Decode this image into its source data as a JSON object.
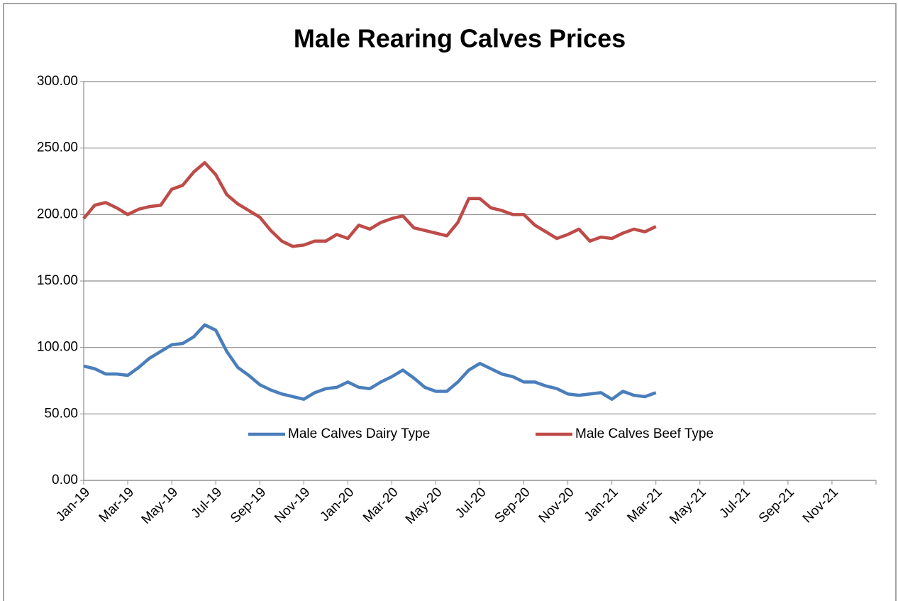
{
  "chart_data": {
    "type": "line",
    "title": "Male Rearing Calves Prices",
    "x": [
      0,
      0.5,
      1,
      1.5,
      2,
      2.5,
      3,
      3.5,
      4,
      4.5,
      5,
      5.5,
      6,
      6.5,
      7,
      7.5,
      8,
      8.5,
      9,
      9.5,
      10,
      10.5,
      11,
      11.5,
      12,
      12.5,
      13,
      13.5,
      14,
      14.5,
      15,
      15.5,
      16,
      16.5,
      17,
      17.5,
      18,
      18.5,
      19,
      19.5,
      20,
      20.5,
      21,
      21.5,
      22,
      22.5,
      23,
      23.5,
      24,
      24.5,
      25,
      25.5,
      26
    ],
    "series": [
      {
        "name": "Male Calves Dairy Type",
        "color": "#4a7ebb",
        "values": [
          86,
          84,
          80,
          80,
          79,
          85,
          92,
          97,
          102,
          103,
          108,
          117,
          113,
          97,
          85,
          79,
          72,
          68,
          65,
          63,
          61,
          66,
          69,
          70,
          74,
          70,
          69,
          74,
          78,
          83,
          77,
          70,
          67,
          67,
          74,
          83,
          88,
          84,
          80,
          78,
          74,
          74,
          71,
          69,
          65,
          64,
          65,
          66,
          61,
          67,
          64,
          63,
          66
        ]
      },
      {
        "name": "Male Calves Beef Type",
        "color": "#be4b48",
        "values": [
          197,
          207,
          209,
          205,
          200,
          204,
          206,
          207,
          219,
          222,
          232,
          239,
          230,
          215,
          208,
          203,
          198,
          188,
          180,
          176,
          177,
          180,
          180,
          185,
          182,
          192,
          189,
          194,
          197,
          199,
          190,
          188,
          186,
          184,
          194,
          212,
          212,
          205,
          203,
          200,
          200,
          192,
          187,
          182,
          185,
          189,
          180,
          183,
          182,
          186,
          189,
          187,
          191
        ]
      }
    ],
    "xlim": [
      0,
      36
    ],
    "xticks": [
      {
        "value": 0,
        "label": "Jan-19"
      },
      {
        "value": 2,
        "label": "Mar-19"
      },
      {
        "value": 4,
        "label": "May-19"
      },
      {
        "value": 6,
        "label": "Jul-19"
      },
      {
        "value": 8,
        "label": "Sep-19"
      },
      {
        "value": 10,
        "label": "Nov-19"
      },
      {
        "value": 12,
        "label": "Jan-20"
      },
      {
        "value": 14,
        "label": "Mar-20"
      },
      {
        "value": 16,
        "label": "May-20"
      },
      {
        "value": 18,
        "label": "Jul-20"
      },
      {
        "value": 20,
        "label": "Sep-20"
      },
      {
        "value": 22,
        "label": "Nov-20"
      },
      {
        "value": 24,
        "label": "Jan-21"
      },
      {
        "value": 26,
        "label": "Mar-21"
      },
      {
        "value": 28,
        "label": "May-21"
      },
      {
        "value": 30,
        "label": "Jul-21"
      },
      {
        "value": 32,
        "label": "Sep-21"
      },
      {
        "value": 34,
        "label": "Nov-21"
      }
    ],
    "ylim": [
      0,
      300
    ],
    "yticks": [
      {
        "value": 0,
        "label": "0.00"
      },
      {
        "value": 50,
        "label": "50.00"
      },
      {
        "value": 100,
        "label": "100.00"
      },
      {
        "value": 150,
        "label": "150.00"
      },
      {
        "value": 200,
        "label": "200.00"
      },
      {
        "value": 250,
        "label": "250.00"
      },
      {
        "value": 300,
        "label": "300.00"
      }
    ],
    "grid": true,
    "legend": "bottom"
  }
}
